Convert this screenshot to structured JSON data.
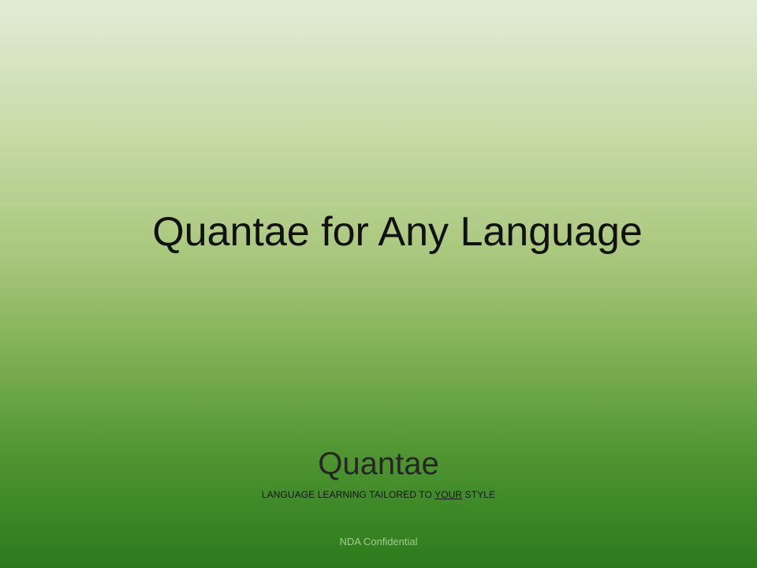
{
  "slide": {
    "title": "Quantae for Any Language",
    "brand_name": "Quantae",
    "tagline": {
      "before": "LANGUAGE LEARNING TAILORED TO ",
      "emphasis": "YOUR",
      "after": " STYLE"
    },
    "footer": "NDA Confidential"
  },
  "colors": {
    "gradient_top": "#e2ecd6",
    "gradient_bottom": "#2c7a1c",
    "title_text": "#111111",
    "footer_text": "#a9c98f"
  }
}
